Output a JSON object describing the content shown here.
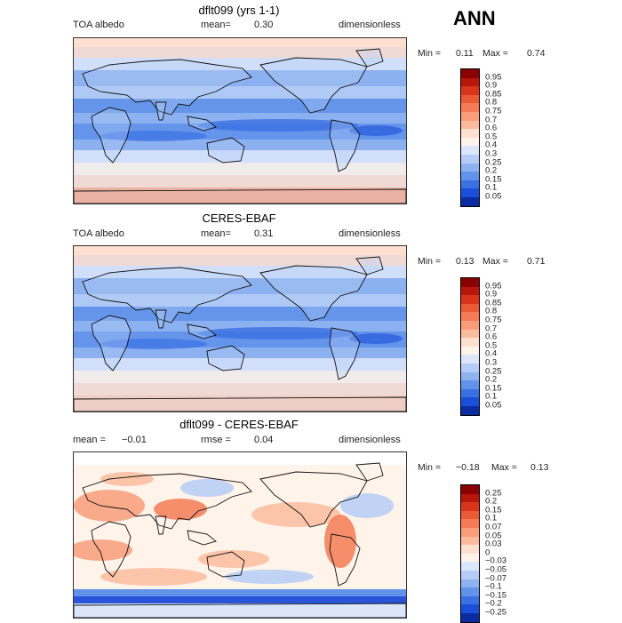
{
  "season": "ANN",
  "panels": [
    {
      "title": "dflt099 (yrs 1-1)",
      "left": "TOA albedo",
      "mid_label": "mean=",
      "mid_value": "0.30",
      "right": "dimensionless",
      "min_label": "Min =",
      "min_value": "0.11",
      "max_label": "Max =",
      "max_value": "0.74",
      "levels": [
        "0.95",
        "0.9",
        "0.85",
        "0.8",
        "0.75",
        "0.7",
        "0.6",
        "0.5",
        "0.4",
        "0.3",
        "0.25",
        "0.2",
        "0.15",
        "0.1",
        "0.05"
      ],
      "colors": [
        "#8b0000",
        "#b8150d",
        "#d9341a",
        "#ea5a35",
        "#f47b55",
        "#f89c7a",
        "#fbbc9e",
        "#fde0cf",
        "#fff3ea",
        "#dbe6fb",
        "#b5cdf6",
        "#8eb2f0",
        "#6293ea",
        "#3b70e2",
        "#1b4fd8",
        "#0a2ca0"
      ],
      "background": "#7ea7ee",
      "polar": "#f6b49a"
    },
    {
      "title": "CERES-EBAF",
      "left": "TOA albedo",
      "mid_label": "mean=",
      "mid_value": "0.31",
      "right": "dimensionless",
      "min_label": "Min =",
      "min_value": "0.13",
      "max_label": "Max =",
      "max_value": "0.71",
      "levels": [
        "0.95",
        "0.9",
        "0.85",
        "0.8",
        "0.75",
        "0.7",
        "0.6",
        "0.5",
        "0.4",
        "0.3",
        "0.25",
        "0.2",
        "0.15",
        "0.1",
        "0.05"
      ],
      "colors": [
        "#8b0000",
        "#b8150d",
        "#d9341a",
        "#ea5a35",
        "#f47b55",
        "#f89c7a",
        "#fbbc9e",
        "#fde0cf",
        "#fff3ea",
        "#dbe6fb",
        "#b5cdf6",
        "#8eb2f0",
        "#6293ea",
        "#3b70e2",
        "#1b4fd8",
        "#0a2ca0"
      ],
      "background": "#7ea7ee",
      "polar": "#fbd3c0"
    },
    {
      "title": "dflt099 - CERES-EBAF",
      "left_label": "mean =",
      "left_value": "−0.01",
      "mid_label": "rmse =",
      "mid_value": "0.04",
      "right": "dimensionless",
      "min_label": "Min =",
      "min_value": "−0.18",
      "max_label": "Max =",
      "max_value": "0.13",
      "levels": [
        "0.25",
        "0.2",
        "0.15",
        "0.1",
        "0.07",
        "0.05",
        "0.03",
        "0",
        "−0.03",
        "−0.05",
        "−0.07",
        "−0.1",
        "−0.15",
        "−0.2",
        "−0.25"
      ],
      "colors": [
        "#8b0000",
        "#b8150d",
        "#d9341a",
        "#ea5a35",
        "#f47b55",
        "#f89c7a",
        "#fbbc9e",
        "#fde0cf",
        "#fff3ea",
        "#dbe6fb",
        "#b5cdf6",
        "#8eb2f0",
        "#6293ea",
        "#3b70e2",
        "#1b4fd8",
        "#0a2ca0"
      ],
      "background": "#cddcf7",
      "polar": "#2a55d9"
    }
  ]
}
